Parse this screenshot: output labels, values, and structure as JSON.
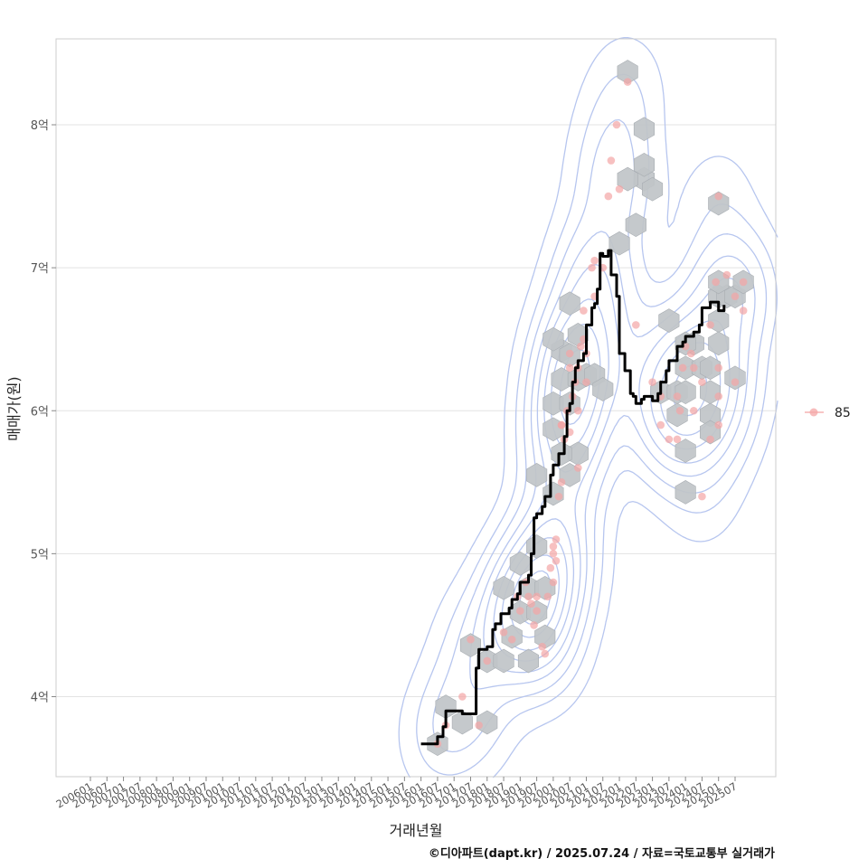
{
  "chart_data": {
    "type": "scatter",
    "xlabel": "거래년월",
    "ylabel": "매매가(원)",
    "caption": "©디아파트(dapt.kr) / 2025.07.24 / 자료=국토교통부 실거래가",
    "legend": {
      "placement": "right",
      "entries": [
        {
          "label": "85",
          "color": "#f4a5a5"
        }
      ]
    },
    "x_ticks": [
      "200601",
      "200607",
      "200701",
      "200707",
      "200801",
      "200807",
      "200901",
      "200907",
      "201001",
      "201007",
      "201101",
      "201107",
      "201201",
      "201207",
      "201301",
      "201307",
      "201401",
      "201407",
      "201501",
      "201507",
      "201601",
      "201607",
      "201701",
      "201707",
      "201801",
      "201807",
      "201901",
      "201907",
      "202001",
      "202007",
      "202101",
      "202107",
      "202201",
      "202207",
      "202301",
      "202307",
      "202401",
      "202407",
      "202501",
      "202507"
    ],
    "x_range": [
      "200601",
      "202507"
    ],
    "y_ticks": [
      {
        "value": 4,
        "label": "4억"
      },
      {
        "value": 5,
        "label": "5억"
      },
      {
        "value": 6,
        "label": "6억"
      },
      {
        "value": 7,
        "label": "7억"
      },
      {
        "value": 8,
        "label": "8억"
      }
    ],
    "y_unit": "억",
    "ylim": [
      3.45,
      8.6
    ],
    "grid": true,
    "colors": {
      "points": "#f4a5a5",
      "hex": "#c0c4c8",
      "hex_stroke": "#a8adb2",
      "contour": "#b7c6ef",
      "trend": "#000000",
      "grid": "#e3e3e3",
      "frame": "#cccccc"
    },
    "hex_bins": [
      [
        "201607",
        3.67
      ],
      [
        "201610",
        3.93
      ],
      [
        "201704",
        3.82
      ],
      [
        "201801",
        3.82
      ],
      [
        "201707",
        4.36
      ],
      [
        "201801",
        4.25
      ],
      [
        "201807",
        4.25
      ],
      [
        "201810",
        4.42
      ],
      [
        "201904",
        4.25
      ],
      [
        "201807",
        4.76
      ],
      [
        "201901",
        4.59
      ],
      [
        "201904",
        4.76
      ],
      [
        "201907",
        4.59
      ],
      [
        "201910",
        4.76
      ],
      [
        "201910",
        4.42
      ],
      [
        "201901",
        4.93
      ],
      [
        "201907",
        5.05
      ],
      [
        "201907",
        5.55
      ],
      [
        "202001",
        5.42
      ],
      [
        "202001",
        5.87
      ],
      [
        "202007",
        5.55
      ],
      [
        "202010",
        5.7
      ],
      [
        "202004",
        5.7
      ],
      [
        "202001",
        6.05
      ],
      [
        "202007",
        6.05
      ],
      [
        "202004",
        6.22
      ],
      [
        "202010",
        6.22
      ],
      [
        "202004",
        6.42
      ],
      [
        "202007",
        6.39
      ],
      [
        "202010",
        6.53
      ],
      [
        "202001",
        6.5
      ],
      [
        "202007",
        6.75
      ],
      [
        "202101",
        6.25
      ],
      [
        "202104",
        6.25
      ],
      [
        "202107",
        6.15
      ],
      [
        "202201",
        7.17
      ],
      [
        "202207",
        7.3
      ],
      [
        "202210",
        7.62
      ],
      [
        "202204",
        7.62
      ],
      [
        "202210",
        7.72
      ],
      [
        "202301",
        7.55
      ],
      [
        "202210",
        7.97
      ],
      [
        "202204",
        8.37
      ],
      [
        "202307",
        6.63
      ],
      [
        "202304",
        6.13
      ],
      [
        "202310",
        6.13
      ],
      [
        "202310",
        5.97
      ],
      [
        "202401",
        6.13
      ],
      [
        "202401",
        6.3
      ],
      [
        "202404",
        6.47
      ],
      [
        "202407",
        6.3
      ],
      [
        "202401",
        6.47
      ],
      [
        "202410",
        6.13
      ],
      [
        "202410",
        6.3
      ],
      [
        "202501",
        6.63
      ],
      [
        "202410",
        5.97
      ],
      [
        "202410",
        5.85
      ],
      [
        "202401",
        5.72
      ],
      [
        "202401",
        5.43
      ],
      [
        "202501",
        6.47
      ],
      [
        "202501",
        6.8
      ],
      [
        "202504",
        6.8
      ],
      [
        "202507",
        6.8
      ],
      [
        "202501",
        6.9
      ],
      [
        "202510",
        6.9
      ],
      [
        "202507",
        6.23
      ],
      [
        "202501",
        7.45
      ]
    ],
    "points": [
      [
        "201607",
        3.67
      ],
      [
        "201610",
        3.8
      ],
      [
        "201704",
        4.0
      ],
      [
        "201707",
        4.4
      ],
      [
        "201710",
        3.8
      ],
      [
        "201801",
        4.25
      ],
      [
        "201807",
        4.45
      ],
      [
        "201810",
        4.4
      ],
      [
        "201812",
        4.7
      ],
      [
        "201901",
        4.6
      ],
      [
        "201903",
        4.8
      ],
      [
        "201904",
        4.7
      ],
      [
        "201905",
        4.65
      ],
      [
        "201906",
        4.5
      ],
      [
        "201907",
        4.6
      ],
      [
        "201909",
        4.35
      ],
      [
        "201910",
        4.3
      ],
      [
        "201912",
        4.9
      ],
      [
        "202001",
        5.0
      ],
      [
        "202001",
        5.05
      ],
      [
        "202002",
        4.95
      ],
      [
        "202002",
        5.1
      ],
      [
        "201911",
        4.7
      ],
      [
        "202003",
        5.4
      ],
      [
        "202004",
        5.5
      ],
      [
        "202004",
        5.9
      ],
      [
        "202005",
        5.8
      ],
      [
        "202006",
        6.0
      ],
      [
        "202007",
        5.85
      ],
      [
        "202008",
        6.1
      ],
      [
        "202009",
        6.2
      ],
      [
        "202010",
        6.3
      ],
      [
        "202011",
        6.45
      ],
      [
        "202012",
        6.5
      ],
      [
        "202101",
        6.4
      ],
      [
        "202012",
        6.7
      ],
      [
        "202007",
        6.3
      ],
      [
        "202010",
        5.6
      ],
      [
        "202101",
        6.2
      ],
      [
        "202104",
        6.8
      ],
      [
        "202103",
        7.0
      ],
      [
        "202104",
        7.05
      ],
      [
        "202107",
        7.0
      ],
      [
        "202109",
        7.5
      ],
      [
        "202110",
        7.75
      ],
      [
        "202112",
        8.0
      ],
      [
        "202201",
        7.55
      ],
      [
        "202204",
        8.3
      ],
      [
        "202207",
        6.6
      ],
      [
        "202301",
        6.2
      ],
      [
        "202304",
        6.1
      ],
      [
        "202307",
        5.8
      ],
      [
        "202310",
        5.8
      ],
      [
        "202311",
        6.0
      ],
      [
        "202312",
        6.3
      ],
      [
        "202401",
        6.45
      ],
      [
        "202403",
        6.4
      ],
      [
        "202404",
        6.3
      ],
      [
        "202407",
        6.2
      ],
      [
        "202410",
        6.6
      ],
      [
        "202412",
        6.9
      ],
      [
        "202504",
        6.95
      ],
      [
        "202507",
        6.8
      ],
      [
        "202510",
        6.9
      ],
      [
        "202501",
        7.5
      ],
      [
        "202407",
        5.4
      ],
      [
        "202410",
        5.8
      ],
      [
        "202501",
        6.1
      ],
      [
        "202501",
        6.3
      ],
      [
        "202507",
        6.2
      ],
      [
        "201907",
        4.7
      ],
      [
        "202001",
        4.8
      ],
      [
        "202004",
        5.9
      ],
      [
        "202007",
        6.4
      ],
      [
        "202010",
        6.0
      ],
      [
        "202304",
        5.9
      ],
      [
        "202310",
        6.1
      ],
      [
        "202404",
        6.0
      ],
      [
        "202501",
        5.9
      ],
      [
        "202510",
        6.7
      ]
    ],
    "trend_line": [
      [
        "201601",
        3.67
      ],
      [
        "201603",
        3.67
      ],
      [
        "201606",
        3.67
      ],
      [
        "201607",
        3.72
      ],
      [
        "201609",
        3.79
      ],
      [
        "201610",
        3.9
      ],
      [
        "201701",
        3.9
      ],
      [
        "201704",
        3.88
      ],
      [
        "201707",
        3.88
      ],
      [
        "201709",
        4.2
      ],
      [
        "201710",
        4.33
      ],
      [
        "201801",
        4.35
      ],
      [
        "201803",
        4.47
      ],
      [
        "201804",
        4.51
      ],
      [
        "201806",
        4.58
      ],
      [
        "201809",
        4.62
      ],
      [
        "201810",
        4.68
      ],
      [
        "201812",
        4.72
      ],
      [
        "201901",
        4.8
      ],
      [
        "201904",
        4.85
      ],
      [
        "201905",
        5.0
      ],
      [
        "201906",
        5.25
      ],
      [
        "201907",
        5.28
      ],
      [
        "201909",
        5.33
      ],
      [
        "201910",
        5.4
      ],
      [
        "201912",
        5.55
      ],
      [
        "202001",
        5.62
      ],
      [
        "202003",
        5.7
      ],
      [
        "202005",
        5.82
      ],
      [
        "202006",
        6.0
      ],
      [
        "202007",
        6.05
      ],
      [
        "202008",
        6.2
      ],
      [
        "202009",
        6.3
      ],
      [
        "202010",
        6.35
      ],
      [
        "202012",
        6.4
      ],
      [
        "202101",
        6.6
      ],
      [
        "202103",
        6.72
      ],
      [
        "202104",
        6.75
      ],
      [
        "202105",
        6.85
      ],
      [
        "202106",
        7.1
      ],
      [
        "202107",
        7.08
      ],
      [
        "202109",
        7.12
      ],
      [
        "202110",
        6.95
      ],
      [
        "202112",
        6.8
      ],
      [
        "202201",
        6.4
      ],
      [
        "202203",
        6.28
      ],
      [
        "202205",
        6.12
      ],
      [
        "202206",
        6.1
      ],
      [
        "202207",
        6.05
      ],
      [
        "202209",
        6.08
      ],
      [
        "202210",
        6.1
      ],
      [
        "202301",
        6.07
      ],
      [
        "202303",
        6.12
      ],
      [
        "202304",
        6.2
      ],
      [
        "202306",
        6.28
      ],
      [
        "202307",
        6.35
      ],
      [
        "202310",
        6.45
      ],
      [
        "202312",
        6.48
      ],
      [
        "202401",
        6.52
      ],
      [
        "202404",
        6.55
      ],
      [
        "202406",
        6.6
      ],
      [
        "202407",
        6.72
      ],
      [
        "202410",
        6.76
      ],
      [
        "202501",
        6.7
      ],
      [
        "202503",
        6.74
      ]
    ]
  }
}
